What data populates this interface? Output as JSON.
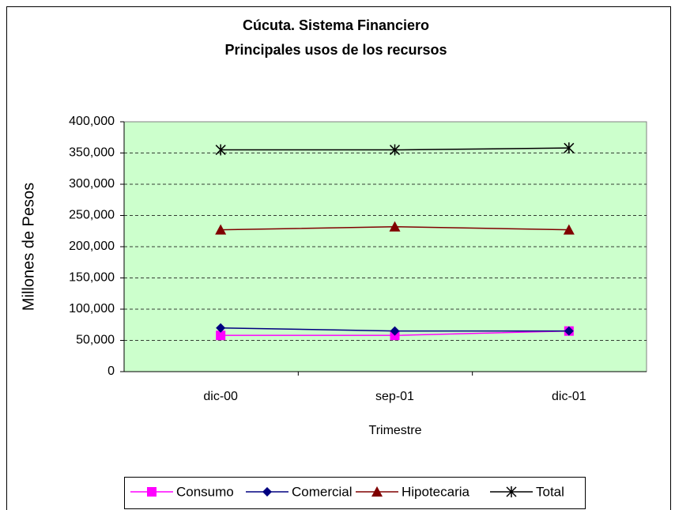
{
  "chart_data": {
    "type": "line",
    "title": "Cúcuta. Sistema Financiero",
    "subtitle": "Principales usos de los recursos",
    "x_label": "Trimestre",
    "y_label": "Millones de Pesos",
    "categories": [
      "dic-00",
      "sep-01",
      "dic-01"
    ],
    "series": [
      {
        "name": "Consumo",
        "color": "#ff00ff",
        "marker": "square",
        "values": [
          58000,
          58000,
          65000
        ]
      },
      {
        "name": "Comercial",
        "color": "#000080",
        "marker": "diamond",
        "values": [
          70000,
          65000,
          65000
        ]
      },
      {
        "name": "Hipotecaria",
        "color": "#800000",
        "marker": "triangle",
        "values": [
          227000,
          232000,
          227000
        ]
      },
      {
        "name": "Total",
        "color": "#000000",
        "marker": "star",
        "values": [
          355000,
          355000,
          358000
        ]
      }
    ],
    "ylim": [
      0,
      400000
    ],
    "yticks": [
      0,
      {
        "value": 50000,
        "label": "50,000"
      },
      {
        "value": 100000,
        "label": "100,000"
      },
      {
        "value": 150000,
        "label": "150,000"
      },
      {
        "value": 200000,
        "label": "200,000"
      },
      {
        "value": 250000,
        "label": "250,000"
      },
      {
        "value": 300000,
        "label": "300,000"
      },
      {
        "value": 350000,
        "label": "350,000"
      },
      {
        "value": 400000,
        "label": "400,000"
      }
    ],
    "grid": true,
    "plot_background": "#ccffcc",
    "legend": "bottom"
  }
}
